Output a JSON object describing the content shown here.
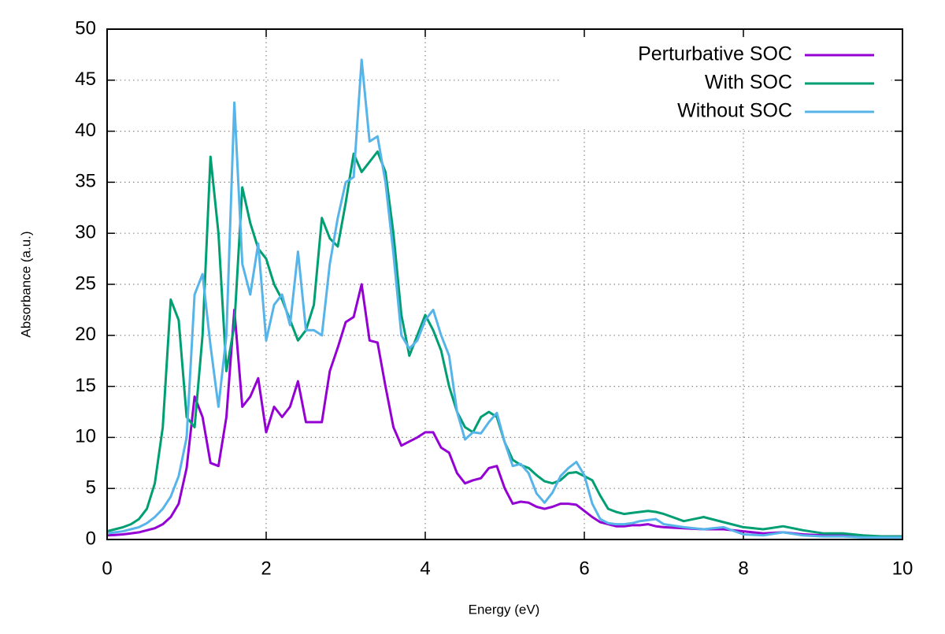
{
  "chart_data": {
    "type": "line",
    "xlabel": "Energy (eV)",
    "ylabel": "Absorbance (a.u.)",
    "xlim": [
      0,
      10
    ],
    "ylim": [
      0,
      50
    ],
    "xticks": [
      0,
      2,
      4,
      6,
      8,
      10
    ],
    "yticks": [
      0,
      5,
      10,
      15,
      20,
      25,
      30,
      35,
      40,
      45,
      50
    ],
    "grid": true,
    "legend": "top-right",
    "x": [
      0,
      0.1,
      0.2,
      0.3,
      0.4,
      0.5,
      0.6,
      0.7,
      0.8,
      0.9,
      1.0,
      1.1,
      1.2,
      1.3,
      1.4,
      1.5,
      1.6,
      1.7,
      1.8,
      1.9,
      2.0,
      2.1,
      2.2,
      2.3,
      2.4,
      2.5,
      2.6,
      2.7,
      2.8,
      2.9,
      3.0,
      3.1,
      3.2,
      3.3,
      3.4,
      3.5,
      3.6,
      3.7,
      3.8,
      3.9,
      4.0,
      4.1,
      4.2,
      4.3,
      4.4,
      4.5,
      4.6,
      4.7,
      4.8,
      4.9,
      5.0,
      5.1,
      5.2,
      5.3,
      5.4,
      5.5,
      5.6,
      5.7,
      5.8,
      5.9,
      6.0,
      6.1,
      6.2,
      6.3,
      6.4,
      6.5,
      6.6,
      6.7,
      6.8,
      6.9,
      7.0,
      7.25,
      7.5,
      7.75,
      8,
      8.25,
      8.5,
      8.75,
      9,
      9.25,
      9.5,
      9.75,
      10
    ],
    "series": [
      {
        "name": "Perturbative SOC",
        "color": "#9400d3",
        "values": [
          0.4,
          0.45,
          0.5,
          0.6,
          0.7,
          0.9,
          1.1,
          1.5,
          2.2,
          3.5,
          7,
          14,
          12,
          7.5,
          7.2,
          12,
          22.5,
          13,
          14,
          15.8,
          10.5,
          13,
          12,
          13,
          15.5,
          11.5,
          11.5,
          11.5,
          16.5,
          18.8,
          21.3,
          21.8,
          25,
          19.5,
          19.3,
          15,
          11,
          9.2,
          9.6,
          10,
          10.5,
          10.5,
          9,
          8.5,
          6.5,
          5.5,
          5.8,
          6,
          7,
          7.2,
          5,
          3.5,
          3.7,
          3.6,
          3.2,
          3.0,
          3.2,
          3.5,
          3.5,
          3.4,
          2.8,
          2.2,
          1.7,
          1.5,
          1.3,
          1.3,
          1.4,
          1.4,
          1.5,
          1.3,
          1.2,
          1.1,
          1.0,
          1.0,
          0.8,
          0.6,
          0.7,
          0.5,
          0.4,
          0.4,
          0.3,
          0.3,
          0.3
        ]
      },
      {
        "name": "With SOC",
        "color": "#009e73",
        "values": [
          0.8,
          1.0,
          1.2,
          1.5,
          2.0,
          3.0,
          5.5,
          11,
          23.5,
          21.5,
          12,
          11,
          20,
          37.5,
          30,
          16.5,
          21,
          34.5,
          31,
          28.5,
          27.5,
          25,
          23.5,
          21.5,
          19.5,
          20.5,
          23,
          31.5,
          29.5,
          28.7,
          33,
          37.8,
          36,
          37,
          38,
          36,
          30,
          22,
          18,
          20,
          22,
          20.5,
          18.5,
          15,
          12.5,
          11,
          10.5,
          12,
          12.5,
          12,
          9.5,
          7.8,
          7.3,
          7,
          6.3,
          5.7,
          5.5,
          5.8,
          6.5,
          6.6,
          6.2,
          5.8,
          4.3,
          3.0,
          2.7,
          2.5,
          2.6,
          2.7,
          2.8,
          2.7,
          2.5,
          1.8,
          2.2,
          1.7,
          1.2,
          1.0,
          1.3,
          0.9,
          0.6,
          0.6,
          0.4,
          0.3,
          0.3
        ]
      },
      {
        "name": "Without SOC",
        "color": "#56b4e9",
        "values": [
          0.6,
          0.7,
          0.8,
          1.0,
          1.2,
          1.6,
          2.2,
          3.0,
          4.2,
          6.2,
          10,
          24,
          26,
          19,
          13,
          20,
          42.8,
          27,
          24,
          29,
          19.5,
          23,
          24,
          21,
          28.2,
          20.5,
          20.5,
          20,
          27,
          31.5,
          35,
          35.5,
          47,
          39,
          39.5,
          35,
          28,
          20,
          18.7,
          19.5,
          21.5,
          22.5,
          20,
          18,
          12.5,
          9.8,
          10.5,
          10.4,
          11.5,
          12.4,
          9.5,
          7.2,
          7.4,
          6.5,
          4.5,
          3.6,
          4.6,
          6.2,
          7.0,
          7.6,
          6.3,
          3.5,
          2.0,
          1.6,
          1.5,
          1.5,
          1.6,
          1.8,
          1.9,
          2.0,
          1.5,
          1.2,
          1.0,
          1.2,
          0.5,
          0.4,
          0.7,
          0.4,
          0.3,
          0.3,
          0.2,
          0.2,
          0.2
        ]
      }
    ]
  }
}
